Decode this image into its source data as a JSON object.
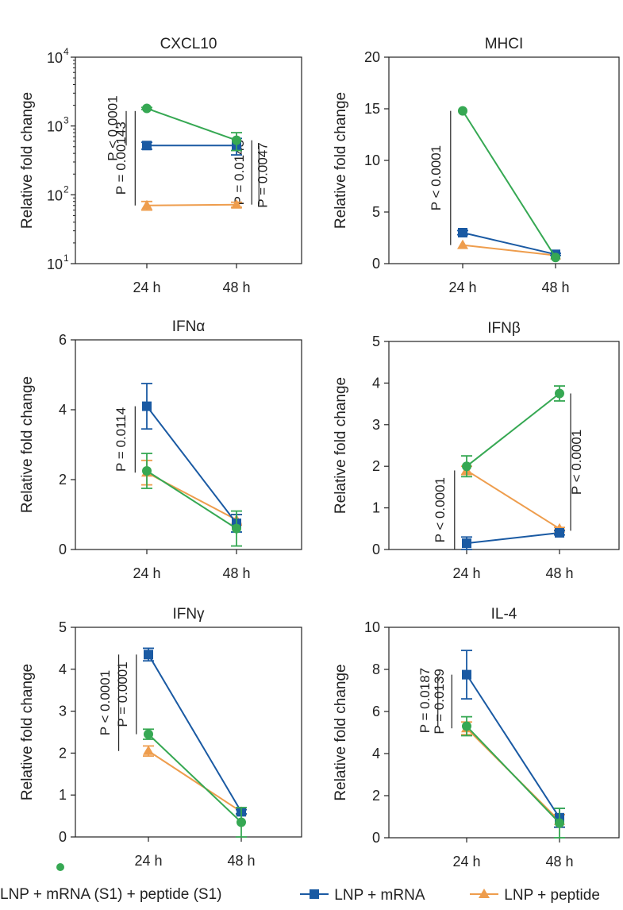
{
  "colors": {
    "green": "#36a853",
    "blue": "#1a5aa3",
    "orange": "#ee9d4d",
    "axis": "#222222"
  },
  "legend": [
    {
      "label": "LNP + mRNA (S1) + peptide (S1)",
      "marker": "circle",
      "color": "#36a853"
    },
    {
      "label": "LNP + mRNA",
      "marker": "square",
      "color": "#1a5aa3"
    },
    {
      "label": "LNP + peptide",
      "marker": "triangle",
      "color": "#ee9d4d"
    }
  ],
  "chart_data": [
    {
      "type": "line",
      "title": "CXCL10",
      "ylabel": "Relative fold change",
      "yscale": "log",
      "ylim": [
        10,
        10000
      ],
      "yticks": [
        {
          "value": 10,
          "base": "10",
          "exp": "1"
        },
        {
          "value": 100,
          "base": "10",
          "exp": "2"
        },
        {
          "value": 1000,
          "base": "10",
          "exp": "3"
        },
        {
          "value": 10000,
          "base": "10",
          "exp": "4"
        }
      ],
      "categories": [
        "24 h",
        "48 h"
      ],
      "series": [
        {
          "name": "LNP + mRNA (S1) + peptide (S1)",
          "color": "green",
          "marker": "circle",
          "values": [
            1800,
            620
          ],
          "err": [
            60,
            180
          ]
        },
        {
          "name": "LNP + mRNA",
          "color": "blue",
          "marker": "square",
          "values": [
            520,
            520
          ],
          "err": [
            60,
            140
          ]
        },
        {
          "name": "LNP + peptide",
          "color": "orange",
          "marker": "triangle",
          "values": [
            70,
            72
          ],
          "err": [
            10,
            6
          ]
        }
      ],
      "annotations": [
        {
          "text": "P < 0.0001",
          "x": 0.77,
          "y1": 1650,
          "y2": 520,
          "tx": 0.67
        },
        {
          "text": "P = 0.00143",
          "x": 0.87,
          "y1": 1650,
          "y2": 70,
          "tx": 0.76
        },
        {
          "text": "P = 0.0145",
          "x": 2.17,
          "y1": 620,
          "y2": 72,
          "tx": 2.08
        },
        {
          "text": "P = 0.0047",
          "x": 2.25,
          "y1": 520,
          "y2": 72,
          "tx": 2.34
        }
      ]
    },
    {
      "type": "line",
      "title": "MHCI",
      "ylabel": "Relative fold change",
      "ylim": [
        0,
        20
      ],
      "yticks": [
        0,
        5,
        10,
        15,
        20
      ],
      "categories": [
        "24 h",
        "48 h"
      ],
      "series": [
        {
          "name": "LNP + mRNA (S1) + peptide (S1)",
          "color": "green",
          "marker": "circle",
          "values": [
            14.8,
            0.6
          ],
          "err": [
            0,
            0
          ]
        },
        {
          "name": "LNP + mRNA",
          "color": "blue",
          "marker": "square",
          "values": [
            3.0,
            0.9
          ],
          "err": [
            0.2,
            0.1
          ]
        },
        {
          "name": "LNP + peptide",
          "color": "orange",
          "marker": "triangle",
          "values": [
            1.8,
            0.8
          ],
          "err": [
            0,
            0
          ]
        }
      ],
      "annotations": [
        {
          "text": "P < 0.0001",
          "x": 0.87,
          "y1": 14.8,
          "y2": 1.8,
          "tx": 0.76
        }
      ]
    },
    {
      "type": "line",
      "title": "IFNα",
      "ylabel": "Relative fold change",
      "ylim": [
        0,
        6
      ],
      "yticks": [
        0,
        2,
        4,
        6
      ],
      "categories": [
        "24 h",
        "48 h"
      ],
      "series": [
        {
          "name": "LNP + mRNA (S1) + peptide (S1)",
          "color": "green",
          "marker": "circle",
          "values": [
            2.25,
            0.6
          ],
          "err": [
            0.5,
            0.5
          ]
        },
        {
          "name": "LNP + mRNA",
          "color": "blue",
          "marker": "square",
          "values": [
            4.1,
            0.75
          ],
          "err": [
            0.65,
            0.25
          ]
        },
        {
          "name": "LNP + peptide",
          "color": "orange",
          "marker": "triangle",
          "values": [
            2.2,
            0.85
          ],
          "err": [
            0.35,
            0.15
          ]
        }
      ],
      "annotations": [
        {
          "text": "P = 0.0114",
          "x": 0.87,
          "y1": 4.1,
          "y2": 2.2,
          "tx": 0.76
        }
      ]
    },
    {
      "type": "line",
      "title": "IFNβ",
      "ylabel": "Relative fold change",
      "ylim": [
        0,
        5
      ],
      "yticks": [
        0,
        1,
        2,
        3,
        4,
        5
      ],
      "categories": [
        "24 h",
        "48 h"
      ],
      "series": [
        {
          "name": "LNP + mRNA (S1) + peptide (S1)",
          "color": "green",
          "marker": "circle",
          "values": [
            2.0,
            3.75
          ],
          "err": [
            0.25,
            0.18
          ]
        },
        {
          "name": "LNP + mRNA",
          "color": "blue",
          "marker": "square",
          "values": [
            0.15,
            0.4
          ],
          "err": [
            0.15,
            0.05
          ]
        },
        {
          "name": "LNP + peptide",
          "color": "orange",
          "marker": "triangle",
          "values": [
            1.9,
            0.5
          ],
          "err": [
            0.1,
            0.03
          ]
        }
      ],
      "annotations": [
        {
          "text": "P < 0.0001",
          "x": 0.87,
          "y1": 1.9,
          "y2": 0.0,
          "tx": 0.76
        },
        {
          "text": "P < 0.0001",
          "x": 2.12,
          "y1": 3.75,
          "y2": 0.45,
          "tx": 2.23
        }
      ]
    },
    {
      "type": "line",
      "title": "IFNγ",
      "ylabel": "Relative fold change",
      "ylim": [
        0,
        5
      ],
      "yticks": [
        0,
        1,
        2,
        3,
        4,
        5
      ],
      "categories": [
        "24 h",
        "48 h"
      ],
      "series": [
        {
          "name": "LNP + mRNA (S1) + peptide (S1)",
          "color": "green",
          "marker": "circle",
          "values": [
            2.45,
            0.35
          ],
          "err": [
            0.12,
            0.35
          ]
        },
        {
          "name": "LNP + mRNA",
          "color": "blue",
          "marker": "square",
          "values": [
            4.35,
            0.6
          ],
          "err": [
            0.15,
            0.05
          ]
        },
        {
          "name": "LNP + peptide",
          "color": "orange",
          "marker": "triangle",
          "values": [
            2.05,
            0.6
          ],
          "err": [
            0.12,
            0.05
          ]
        }
      ],
      "annotations": [
        {
          "text": "P < 0.0001",
          "x": 0.68,
          "y1": 4.35,
          "y2": 2.05,
          "tx": 0.58
        },
        {
          "text": "P = 0.0001",
          "x": 0.87,
          "y1": 4.35,
          "y2": 2.45,
          "tx": 0.77
        }
      ]
    },
    {
      "type": "line",
      "title": "IL-4",
      "ylabel": "Relative fold change",
      "ylim": [
        0,
        10
      ],
      "yticks": [
        0,
        2,
        4,
        6,
        8,
        10
      ],
      "categories": [
        "24 h",
        "48 h"
      ],
      "series": [
        {
          "name": "LNP + mRNA (S1) + peptide (S1)",
          "color": "green",
          "marker": "circle",
          "values": [
            5.3,
            0.7
          ],
          "err": [
            0.45,
            0.7
          ]
        },
        {
          "name": "LNP + mRNA",
          "color": "blue",
          "marker": "square",
          "values": [
            7.75,
            0.95
          ],
          "err": [
            1.15,
            0.45
          ]
        },
        {
          "name": "LNP + peptide",
          "color": "orange",
          "marker": "triangle",
          "values": [
            5.2,
            0.8
          ],
          "err": [
            0.3,
            0.3
          ]
        }
      ],
      "annotations": [
        {
          "text": "P = 0.0187",
          "x": 0.69,
          "y1": 7.75,
          "y2": 5.3,
          "tx": 0.6
        },
        {
          "text": "P = 0.0139",
          "x": 0.84,
          "y1": 7.75,
          "y2": 5.2,
          "tx": 0.75
        }
      ]
    }
  ]
}
